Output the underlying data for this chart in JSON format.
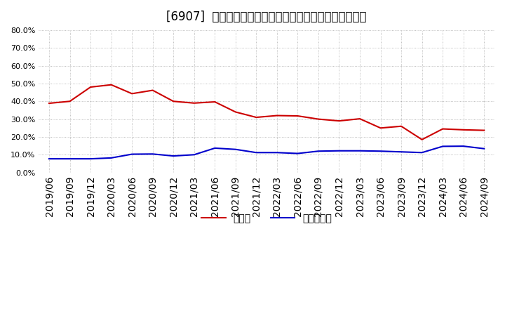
{
  "title": "[6907]  現預金、有利子負債の総資産に対する比率の推移",
  "ylim": [
    0.0,
    0.8
  ],
  "yticks": [
    0.0,
    0.1,
    0.2,
    0.3,
    0.4,
    0.5,
    0.6,
    0.7,
    0.8
  ],
  "x_labels": [
    "2019/06",
    "2019/09",
    "2019/12",
    "2020/03",
    "2020/06",
    "2020/09",
    "2020/12",
    "2021/03",
    "2021/06",
    "2021/09",
    "2021/12",
    "2022/03",
    "2022/06",
    "2022/09",
    "2022/12",
    "2023/03",
    "2023/06",
    "2023/09",
    "2023/12",
    "2024/03",
    "2024/06",
    "2024/09"
  ],
  "cash": [
    0.389,
    0.4,
    0.48,
    0.493,
    0.443,
    0.462,
    0.4,
    0.39,
    0.397,
    0.34,
    0.31,
    0.32,
    0.318,
    0.3,
    0.29,
    0.302,
    0.25,
    0.26,
    0.185,
    0.245,
    0.24,
    0.237
  ],
  "debt": [
    0.077,
    0.077,
    0.077,
    0.082,
    0.103,
    0.104,
    0.093,
    0.1,
    0.137,
    0.13,
    0.112,
    0.112,
    0.107,
    0.12,
    0.122,
    0.122,
    0.12,
    0.116,
    0.112,
    0.147,
    0.148,
    0.134
  ],
  "cash_color": "#cc0000",
  "debt_color": "#0000cc",
  "background_color": "#ffffff",
  "grid_color": "#999999",
  "legend_cash": "現預金",
  "legend_debt": "有利子負債",
  "title_fontsize": 12,
  "tick_fontsize": 8,
  "legend_fontsize": 10
}
